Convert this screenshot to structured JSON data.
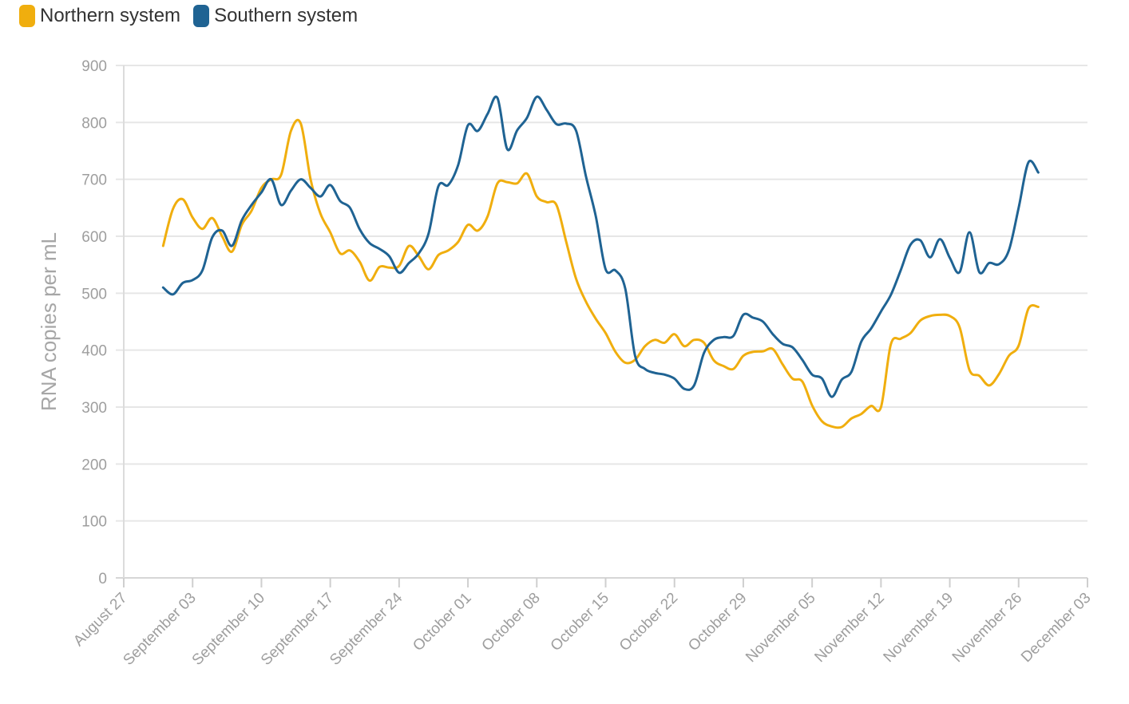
{
  "chart_data": {
    "type": "line",
    "title": "",
    "xlabel": "",
    "ylabel": "RNA copies per mL",
    "ylim": [
      0,
      900
    ],
    "yticks": [
      0,
      100,
      200,
      300,
      400,
      500,
      600,
      700,
      800,
      900
    ],
    "xlim_day": [
      0,
      98
    ],
    "x_ticks": [
      {
        "day": 0,
        "label": "August 27"
      },
      {
        "day": 7,
        "label": "September 03"
      },
      {
        "day": 14,
        "label": "September 10"
      },
      {
        "day": 21,
        "label": "September 17"
      },
      {
        "day": 28,
        "label": "September 24"
      },
      {
        "day": 35,
        "label": "October 01"
      },
      {
        "day": 42,
        "label": "October 08"
      },
      {
        "day": 49,
        "label": "October 15"
      },
      {
        "day": 56,
        "label": "October 22"
      },
      {
        "day": 63,
        "label": "October 29"
      },
      {
        "day": 70,
        "label": "November 05"
      },
      {
        "day": 77,
        "label": "November 12"
      },
      {
        "day": 84,
        "label": "November 19"
      },
      {
        "day": 91,
        "label": "November 26"
      },
      {
        "day": 98,
        "label": "December 03"
      }
    ],
    "legend_position": "top-left",
    "series": [
      {
        "name": "Northern system",
        "color": "#f0ae0e",
        "points": [
          [
            4,
            583
          ],
          [
            5,
            648
          ],
          [
            6,
            665
          ],
          [
            7,
            633
          ],
          [
            8,
            613
          ],
          [
            9,
            632
          ],
          [
            10,
            600
          ],
          [
            11,
            573
          ],
          [
            12,
            620
          ],
          [
            13,
            645
          ],
          [
            14,
            685
          ],
          [
            15,
            700
          ],
          [
            16,
            708
          ],
          [
            17,
            785
          ],
          [
            18,
            798
          ],
          [
            19,
            700
          ],
          [
            20,
            640
          ],
          [
            21,
            607
          ],
          [
            22,
            570
          ],
          [
            23,
            575
          ],
          [
            24,
            555
          ],
          [
            25,
            522
          ],
          [
            26,
            546
          ],
          [
            27,
            545
          ],
          [
            28,
            548
          ],
          [
            29,
            583
          ],
          [
            30,
            565
          ],
          [
            31,
            542
          ],
          [
            32,
            567
          ],
          [
            33,
            575
          ],
          [
            34,
            590
          ],
          [
            35,
            620
          ],
          [
            36,
            610
          ],
          [
            37,
            635
          ],
          [
            38,
            693
          ],
          [
            39,
            695
          ],
          [
            40,
            693
          ],
          [
            41,
            710
          ],
          [
            42,
            670
          ],
          [
            43,
            660
          ],
          [
            44,
            655
          ],
          [
            45,
            590
          ],
          [
            46,
            525
          ],
          [
            47,
            485
          ],
          [
            48,
            455
          ],
          [
            49,
            430
          ],
          [
            50,
            397
          ],
          [
            51,
            378
          ],
          [
            52,
            383
          ],
          [
            53,
            407
          ],
          [
            54,
            418
          ],
          [
            55,
            413
          ],
          [
            56,
            428
          ],
          [
            57,
            407
          ],
          [
            58,
            418
          ],
          [
            59,
            413
          ],
          [
            60,
            382
          ],
          [
            61,
            372
          ],
          [
            62,
            367
          ],
          [
            63,
            390
          ],
          [
            64,
            397
          ],
          [
            65,
            398
          ],
          [
            66,
            402
          ],
          [
            67,
            375
          ],
          [
            68,
            350
          ],
          [
            69,
            345
          ],
          [
            70,
            303
          ],
          [
            71,
            275
          ],
          [
            72,
            266
          ],
          [
            73,
            265
          ],
          [
            74,
            280
          ],
          [
            75,
            288
          ],
          [
            76,
            302
          ],
          [
            77,
            300
          ],
          [
            78,
            410
          ],
          [
            79,
            420
          ],
          [
            80,
            430
          ],
          [
            81,
            452
          ],
          [
            82,
            460
          ],
          [
            83,
            462
          ],
          [
            84,
            460
          ],
          [
            85,
            440
          ],
          [
            86,
            365
          ],
          [
            87,
            355
          ],
          [
            88,
            338
          ],
          [
            89,
            358
          ],
          [
            90,
            390
          ],
          [
            91,
            408
          ],
          [
            92,
            473
          ],
          [
            93,
            476
          ]
        ]
      },
      {
        "name": "Southern system",
        "color": "#1f6393",
        "points": [
          [
            4,
            510
          ],
          [
            5,
            498
          ],
          [
            6,
            518
          ],
          [
            7,
            523
          ],
          [
            8,
            540
          ],
          [
            9,
            598
          ],
          [
            10,
            610
          ],
          [
            11,
            583
          ],
          [
            12,
            628
          ],
          [
            13,
            655
          ],
          [
            14,
            677
          ],
          [
            15,
            700
          ],
          [
            16,
            655
          ],
          [
            17,
            680
          ],
          [
            18,
            700
          ],
          [
            19,
            685
          ],
          [
            20,
            670
          ],
          [
            21,
            690
          ],
          [
            22,
            662
          ],
          [
            23,
            650
          ],
          [
            24,
            612
          ],
          [
            25,
            588
          ],
          [
            26,
            578
          ],
          [
            27,
            565
          ],
          [
            28,
            536
          ],
          [
            29,
            553
          ],
          [
            30,
            570
          ],
          [
            31,
            605
          ],
          [
            32,
            688
          ],
          [
            33,
            690
          ],
          [
            34,
            725
          ],
          [
            35,
            795
          ],
          [
            36,
            785
          ],
          [
            37,
            815
          ],
          [
            38,
            843
          ],
          [
            39,
            753
          ],
          [
            40,
            786
          ],
          [
            41,
            808
          ],
          [
            42,
            845
          ],
          [
            43,
            822
          ],
          [
            44,
            797
          ],
          [
            45,
            798
          ],
          [
            46,
            785
          ],
          [
            47,
            705
          ],
          [
            48,
            635
          ],
          [
            49,
            542
          ],
          [
            50,
            540
          ],
          [
            51,
            508
          ],
          [
            52,
            390
          ],
          [
            53,
            367
          ],
          [
            54,
            360
          ],
          [
            55,
            357
          ],
          [
            56,
            350
          ],
          [
            57,
            332
          ],
          [
            58,
            338
          ],
          [
            59,
            395
          ],
          [
            60,
            418
          ],
          [
            61,
            423
          ],
          [
            62,
            425
          ],
          [
            63,
            462
          ],
          [
            64,
            457
          ],
          [
            65,
            450
          ],
          [
            66,
            428
          ],
          [
            67,
            411
          ],
          [
            68,
            405
          ],
          [
            69,
            383
          ],
          [
            70,
            357
          ],
          [
            71,
            350
          ],
          [
            72,
            318
          ],
          [
            73,
            348
          ],
          [
            74,
            362
          ],
          [
            75,
            415
          ],
          [
            76,
            438
          ],
          [
            77,
            468
          ],
          [
            78,
            497
          ],
          [
            79,
            540
          ],
          [
            80,
            585
          ],
          [
            81,
            593
          ],
          [
            82,
            563
          ],
          [
            83,
            595
          ],
          [
            84,
            562
          ],
          [
            85,
            537
          ],
          [
            86,
            607
          ],
          [
            87,
            537
          ],
          [
            88,
            553
          ],
          [
            89,
            551
          ],
          [
            90,
            575
          ],
          [
            91,
            650
          ],
          [
            92,
            730
          ],
          [
            93,
            712
          ]
        ]
      }
    ]
  }
}
